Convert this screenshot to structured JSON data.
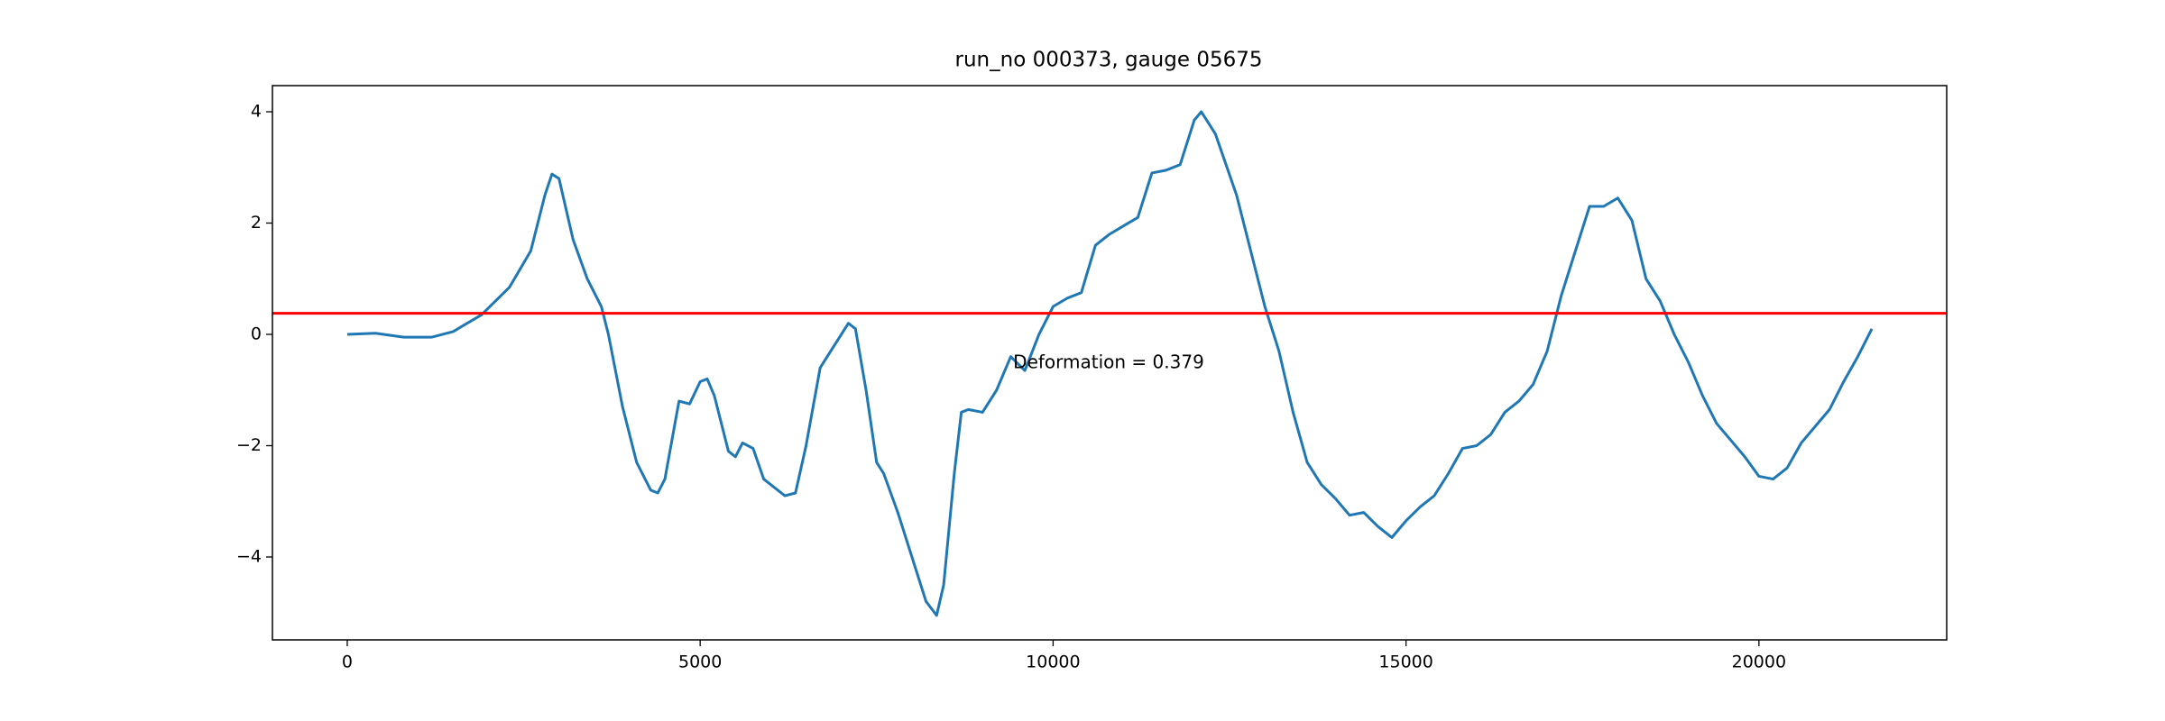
{
  "chart_data": {
    "type": "line",
    "title": "run_no 000373, gauge 05675",
    "x": [
      0,
      400,
      800,
      1200,
      1500,
      1900,
      2300,
      2600,
      2800,
      2900,
      3000,
      3200,
      3400,
      3600,
      3700,
      3900,
      4100,
      4300,
      4400,
      4500,
      4700,
      4850,
      5000,
      5100,
      5200,
      5400,
      5500,
      5600,
      5750,
      5900,
      6050,
      6200,
      6350,
      6500,
      6700,
      6900,
      7100,
      7200,
      7350,
      7500,
      7600,
      7800,
      8000,
      8200,
      8350,
      8450,
      8600,
      8700,
      8800,
      9000,
      9200,
      9400,
      9600,
      9800,
      10000,
      10200,
      10400,
      10600,
      10800,
      11000,
      11200,
      11400,
      11600,
      11800,
      12000,
      12100,
      12300,
      12600,
      12800,
      13000,
      13200,
      13400,
      13600,
      13800,
      14000,
      14200,
      14400,
      14600,
      14800,
      15000,
      15200,
      15400,
      15600,
      15800,
      16000,
      16200,
      16400,
      16600,
      16800,
      17000,
      17200,
      17400,
      17600,
      17800,
      18000,
      18200,
      18400,
      18600,
      18800,
      19000,
      19200,
      19400,
      19600,
      19800,
      20000,
      20200,
      20400,
      20600,
      20800,
      21000,
      21200,
      21400,
      21600
    ],
    "series": [
      {
        "color": "#1f77b4",
        "values": [
          0.0,
          0.02,
          -0.05,
          -0.05,
          0.05,
          0.35,
          0.85,
          1.5,
          2.5,
          2.88,
          2.8,
          1.7,
          1.0,
          0.5,
          0.0,
          -1.3,
          -2.3,
          -2.8,
          -2.85,
          -2.6,
          -1.2,
          -1.25,
          -0.85,
          -0.8,
          -1.1,
          -2.1,
          -2.2,
          -1.95,
          -2.05,
          -2.6,
          -2.75,
          -2.9,
          -2.85,
          -2.0,
          -0.6,
          -0.2,
          0.2,
          0.1,
          -1.0,
          -2.3,
          -2.5,
          -3.2,
          -4.0,
          -4.8,
          -5.05,
          -4.5,
          -2.5,
          -1.4,
          -1.35,
          -1.4,
          -1.0,
          -0.4,
          -0.65,
          0.0,
          0.5,
          0.65,
          0.75,
          1.6,
          1.8,
          1.95,
          2.1,
          2.9,
          2.95,
          3.05,
          3.85,
          4.0,
          3.6,
          2.5,
          1.5,
          0.5,
          -0.3,
          -1.4,
          -2.3,
          -2.7,
          -2.95,
          -3.25,
          -3.2,
          -3.45,
          -3.65,
          -3.35,
          -3.1,
          -2.9,
          -2.5,
          -2.05,
          -2.0,
          -1.8,
          -1.4,
          -1.2,
          -0.9,
          -0.3,
          0.7,
          1.5,
          2.3,
          2.3,
          2.45,
          2.05,
          1.0,
          0.6,
          0.0,
          -0.5,
          -1.1,
          -1.6,
          -1.9,
          -2.2,
          -2.55,
          -2.6,
          -2.4,
          -1.95,
          -1.65,
          -1.35,
          -0.85,
          -0.4,
          0.1
        ]
      }
    ],
    "hline": {
      "value": 0.379,
      "color": "#ff0000"
    },
    "annotation": "Deformation = 0.379",
    "xlim": [
      -1060,
      22660
    ],
    "ylim": [
      -5.49,
      4.47
    ],
    "xticks": [
      0,
      5000,
      10000,
      15000,
      20000
    ],
    "yticks": [
      {
        "value": -4,
        "label": "−4"
      },
      {
        "value": -2,
        "label": "−2"
      },
      0,
      2,
      4
    ]
  }
}
